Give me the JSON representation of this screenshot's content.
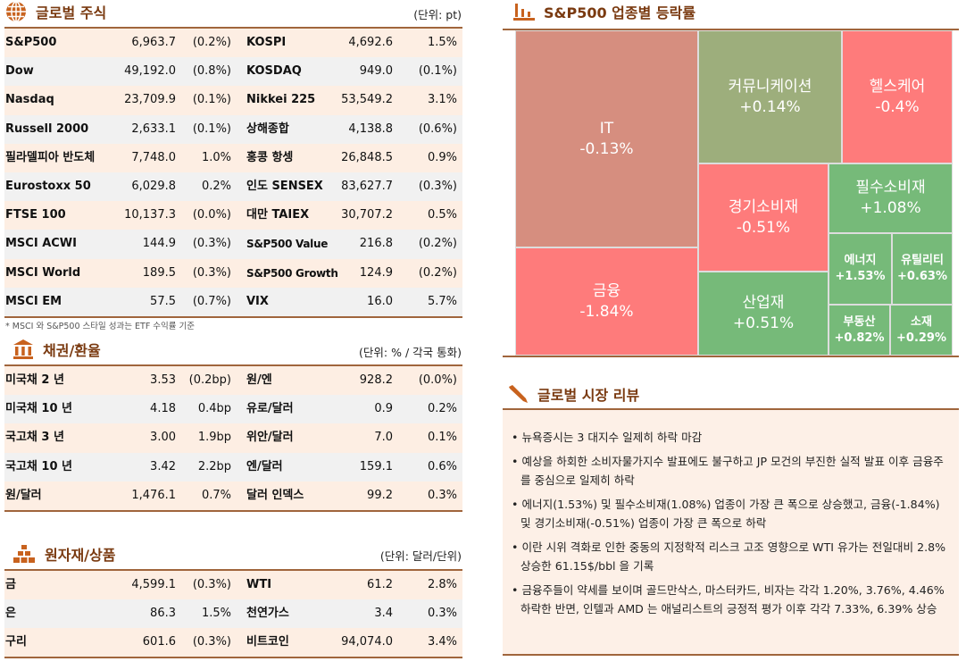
{
  "equities": {
    "title": "글로벌 주식",
    "unit": "(단위: pt)",
    "icon": "globe-icon",
    "rows": [
      [
        "S&P500",
        "6,963.7",
        "(0.2%)",
        "KOSPI",
        "4,692.6",
        "1.5%"
      ],
      [
        "Dow",
        "49,192.0",
        "(0.8%)",
        "KOSDAQ",
        "949.0",
        "(0.1%)"
      ],
      [
        "Nasdaq",
        "23,709.9",
        "(0.1%)",
        "Nikkei 225",
        "53,549.2",
        "3.1%"
      ],
      [
        "Russell 2000",
        "2,633.1",
        "(0.1%)",
        "상해종합",
        "4,138.8",
        "(0.6%)"
      ],
      [
        "필라델피아 반도체",
        "7,748.0",
        "1.0%",
        "홍콩 항셍",
        "26,848.5",
        "0.9%"
      ],
      [
        "Eurostoxx 50",
        "6,029.8",
        "0.2%",
        "인도 SENSEX",
        "83,627.7",
        "(0.3%)"
      ],
      [
        "FTSE 100",
        "10,137.3",
        "(0.0%)",
        "대만 TAIEX",
        "30,707.2",
        "0.5%"
      ],
      [
        "MSCI ACWI",
        "144.9",
        "(0.3%)",
        "S&P500 Value",
        "216.8",
        "(0.2%)"
      ],
      [
        "MSCI World",
        "189.5",
        "(0.3%)",
        "S&P500 Growth",
        "124.9",
        "(0.2%)"
      ],
      [
        "MSCI EM",
        "57.5",
        "(0.7%)",
        "VIX",
        "16.0",
        "5.7%"
      ]
    ],
    "note": "* MSCI 와 S&P500 스타일 성과는 ETF 수익률 기준"
  },
  "bonds": {
    "title": "채권/환율",
    "unit": "(단위: % / 각국 통화)",
    "icon": "bank-icon",
    "rows": [
      [
        "미국채 2 년",
        "3.53",
        "(0.2bp)",
        "원/엔",
        "928.2",
        "(0.0%)"
      ],
      [
        "미국채 10 년",
        "4.18",
        "0.4bp",
        "유로/달러",
        "0.9",
        "0.2%"
      ],
      [
        "국고채 3 년",
        "3.00",
        "1.9bp",
        "위안/달러",
        "7.0",
        "0.1%"
      ],
      [
        "국고채 10 년",
        "3.42",
        "2.2bp",
        "엔/달러",
        "159.1",
        "0.6%"
      ],
      [
        "원/달러",
        "1,476.1",
        "0.7%",
        "달러 인덱스",
        "99.2",
        "0.3%"
      ]
    ]
  },
  "commodities": {
    "title": "원자재/상품",
    "unit": "(단위: 달러/단위)",
    "icon": "gold-bars-icon",
    "rows": [
      [
        "금",
        "4,599.1",
        "(0.3%)",
        "WTI",
        "61.2",
        "2.8%"
      ],
      [
        "은",
        "86.3",
        "1.5%",
        "천연가스",
        "3.4",
        "0.3%"
      ],
      [
        "구리",
        "601.6",
        "(0.3%)",
        "비트코인",
        "94,074.0",
        "3.4%"
      ]
    ]
  },
  "sectors": {
    "title": "S&P500 업종별 등락률",
    "icon": "bar-chart-icon",
    "tiles": [
      {
        "name": "IT",
        "value": "-0.13%",
        "color": "#d68e7f"
      },
      {
        "name": "금융",
        "value": "-1.84%",
        "color": "#fe7b7b"
      },
      {
        "name": "커뮤니케이션",
        "value": "+0.14%",
        "color": "#9dae7c"
      },
      {
        "name": "헬스케어",
        "value": "-0.4%",
        "color": "#fe7b7b"
      },
      {
        "name": "경기소비재",
        "value": "-0.51%",
        "color": "#fe7b7b"
      },
      {
        "name": "산업재",
        "value": "+0.51%",
        "color": "#76ba79"
      },
      {
        "name": "필수소비재",
        "value": "+1.08%",
        "color": "#76ba79"
      },
      {
        "name": "에너지",
        "value": "+1.53%",
        "color": "#76ba79"
      },
      {
        "name": "유틸리티",
        "value": "+0.63%",
        "color": "#76ba79"
      },
      {
        "name": "부동산",
        "value": "+0.82%",
        "color": "#76ba79"
      },
      {
        "name": "소재",
        "value": "+0.29%",
        "color": "#76ba79"
      }
    ]
  },
  "review": {
    "title": "글로벌 시장 리뷰",
    "icon": "pencil-icon",
    "items": [
      "뉴욕증시는 3 대지수 일제히 하락 마감",
      "예상을 하회한 소비자물가지수 발표에도 불구하고 JP 모건의 부진한 실적 발표 이후 금융주를 중심으로 일제히 하락",
      "에너지(1.53%) 및 필수소비재(1.08%) 업종이 가장 큰 폭으로 상승했고, 금융(-1.84%) 및 경기소비재(-0.51%) 업종이 가장 큰 폭으로 하락",
      "이란 시위 격화로 인한 중동의 지정학적 리스크 고조 영향으로 WTI 유가는 전일대비 2.8% 상승한 61.15$/bbl 을 기록",
      "금융주들이 약세를 보이며 골드만삭스, 마스터카드, 비자는 각각 1.20%, 3.76%, 4.46% 하락한 반면, 인텔과 AMD 는 애널리스트의 긍정적 평가 이후 각각 7.33%, 6.39% 상승"
    ]
  }
}
